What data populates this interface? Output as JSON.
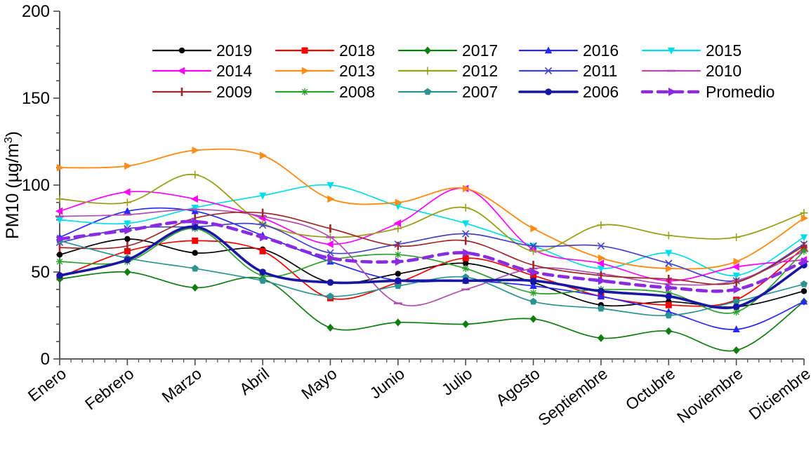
{
  "chart_data": {
    "type": "line",
    "title": "",
    "ylabel_prefix": "PM10 (µg/m",
    "ylabel_sup": "3",
    "ylabel_suffix": ")",
    "ylim": [
      0,
      200
    ],
    "yticks": [
      0,
      50,
      100,
      150,
      200
    ],
    "y_minor_step": 10,
    "x_minor_divisions": 6,
    "grid": false,
    "legend_position": "top-inside",
    "legend_label_promedio": "Promedio",
    "categories": [
      "Enero",
      "Febrero",
      "Marzo",
      "Abril",
      "Mayo",
      "Junio",
      "Julio",
      "Agosto",
      "Septiembre",
      "Octubre",
      "Noviembre",
      "Diciembre"
    ],
    "series": [
      {
        "name": "2019",
        "color": "#000000",
        "marker": "circle",
        "width": 1.7,
        "dash": "",
        "values": [
          60,
          69,
          61,
          63,
          44,
          49,
          55,
          44,
          31,
          33,
          30,
          39
        ]
      },
      {
        "name": "2018",
        "color": "#f40000",
        "marker": "square",
        "width": 1.7,
        "dash": "",
        "values": [
          47,
          62,
          68,
          62,
          35,
          44,
          58,
          48,
          36,
          31,
          34,
          64
        ]
      },
      {
        "name": "2017",
        "color": "#0f7d10",
        "marker": "diamond",
        "width": 1.7,
        "dash": "",
        "values": [
          46,
          50,
          41,
          46,
          18,
          21,
          20,
          23,
          12,
          16,
          5,
          33
        ]
      },
      {
        "name": "2016",
        "color": "#2727ff",
        "marker": "triangle-up",
        "width": 1.7,
        "dash": "",
        "values": [
          70,
          85,
          85,
          71,
          56,
          45,
          45,
          42,
          36,
          27,
          17,
          33
        ]
      },
      {
        "name": "2015",
        "color": "#00dce8",
        "marker": "triangle-down",
        "width": 1.7,
        "dash": "",
        "values": [
          80,
          78,
          87,
          94,
          100,
          88,
          78,
          65,
          52,
          61,
          48,
          70
        ]
      },
      {
        "name": "2014",
        "color": "#ff00ff",
        "marker": "triangle-left",
        "width": 1.7,
        "dash": "",
        "values": [
          85,
          96,
          92,
          81,
          66,
          78,
          98,
          63,
          55,
          45,
          53,
          57
        ]
      },
      {
        "name": "2013",
        "color": "#ff8d17",
        "marker": "triangle-right",
        "width": 1.9,
        "dash": "",
        "values": [
          110,
          111,
          120,
          117,
          92,
          90,
          98,
          75,
          58,
          52,
          56,
          81
        ]
      },
      {
        "name": "2012",
        "color": "#9aa019",
        "marker": "plus",
        "width": 1.8,
        "dash": "",
        "values": [
          92,
          90,
          106,
          78,
          70,
          75,
          87,
          62,
          77,
          71,
          70,
          84
        ]
      },
      {
        "name": "2011",
        "color": "#4343c8",
        "marker": "x",
        "width": 1.7,
        "dash": "",
        "values": [
          67,
          75,
          76,
          77,
          61,
          66,
          72,
          65,
          65,
          55,
          45,
          66
        ]
      },
      {
        "name": "2010",
        "color": "#b04fb2",
        "marker": "hline",
        "width": 1.7,
        "dash": "",
        "values": [
          82,
          83,
          86,
          82,
          70,
          32,
          40,
          52,
          49,
          43,
          45,
          62
        ]
      },
      {
        "name": "2009",
        "color": "#9e2828",
        "marker": "vline",
        "width": 1.7,
        "dash": "",
        "values": [
          64,
          65,
          81,
          84,
          75,
          65,
          68,
          54,
          48,
          46,
          44,
          65
        ]
      },
      {
        "name": "2008",
        "color": "#2ca02c",
        "marker": "asterisk",
        "width": 1.7,
        "dash": "",
        "values": [
          56,
          56,
          75,
          48,
          57,
          60,
          52,
          38,
          40,
          38,
          27,
          62
        ]
      },
      {
        "name": "2007",
        "color": "#2b9493",
        "marker": "pentagon",
        "width": 1.7,
        "dash": "",
        "values": [
          68,
          58,
          52,
          45,
          36,
          42,
          47,
          33,
          29,
          25,
          33,
          43
        ]
      },
      {
        "name": "2006",
        "color": "#1717a4",
        "marker": "circle-bold",
        "width": 3.6,
        "dash": "",
        "values": [
          48,
          57,
          76,
          50,
          44,
          45,
          45,
          45,
          39,
          36,
          30,
          54
        ]
      },
      {
        "name": "Promedio",
        "color": "#8a2be2",
        "marker": "arrow",
        "width": 4.6,
        "dash": "13 9",
        "values": [
          69,
          74,
          79,
          70,
          58,
          56,
          61,
          50,
          45,
          41,
          40,
          56
        ]
      }
    ]
  }
}
